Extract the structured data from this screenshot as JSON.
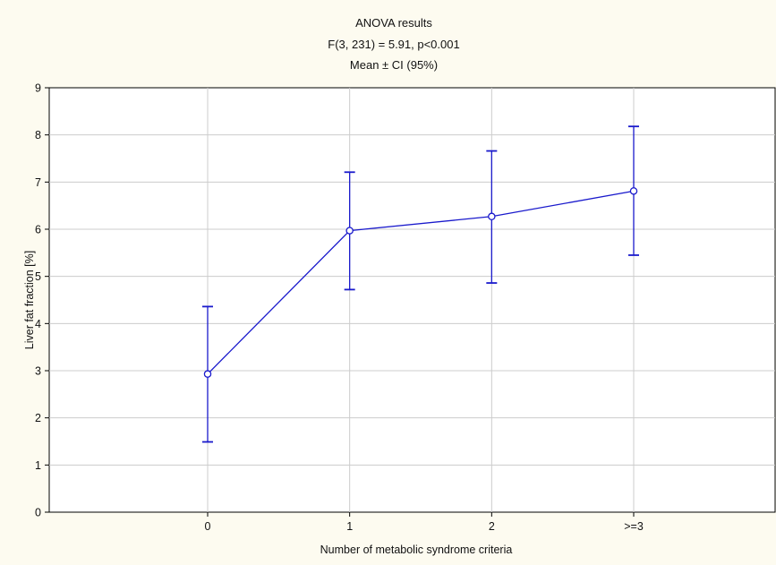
{
  "chart_data": {
    "type": "line",
    "title_lines": [
      "ANOVA results",
      "F(3, 231) = 5.91,   p<0.001",
      "Mean ± CI (95%)"
    ],
    "xlabel": "Number of metabolic syndrome criteria",
    "ylabel": "Liver fat fraction [%]",
    "categories": [
      "0",
      "1",
      "2",
      ">=3"
    ],
    "ylim": [
      0,
      9
    ],
    "yticks": [
      "0",
      "1",
      "2",
      "3",
      "4",
      "5",
      "6",
      "7",
      "8",
      "9"
    ],
    "grid": true,
    "series": [
      {
        "values": [
          2.93,
          5.97,
          6.27,
          6.81
        ],
        "ci_lower": [
          1.49,
          4.72,
          4.86,
          5.45
        ],
        "ci_upper": [
          4.36,
          7.21,
          7.66,
          8.18
        ],
        "color": "#1a1acc"
      }
    ]
  }
}
